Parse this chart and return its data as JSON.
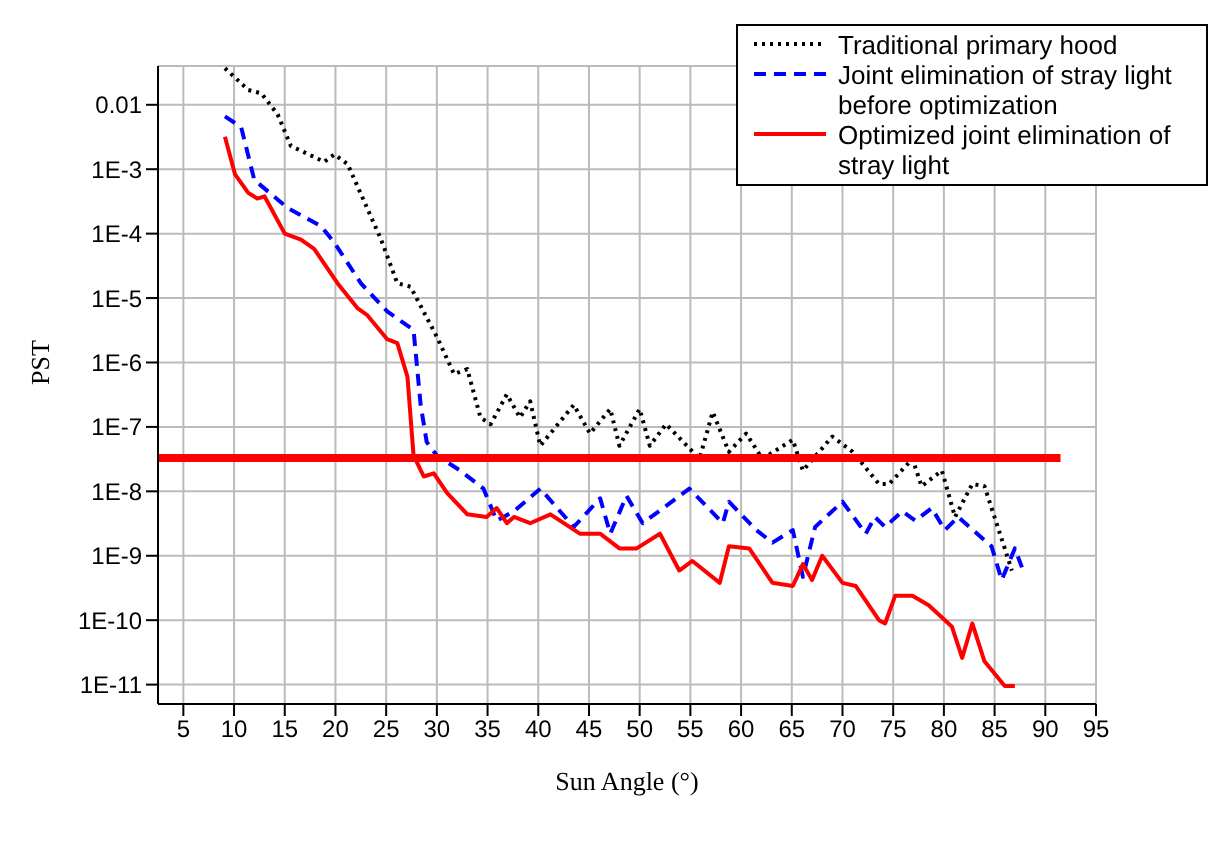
{
  "chart_data": {
    "type": "line",
    "xlabel": "Sun Angle (°)",
    "ylabel": "PST",
    "log": "y",
    "grid": true,
    "legend": "top right",
    "marker": "none",
    "xlim": [
      2.5,
      95
    ],
    "xticks": [
      5,
      10,
      15,
      20,
      25,
      30,
      35,
      40,
      45,
      50,
      55,
      60,
      65,
      70,
      75,
      80,
      85,
      90,
      95
    ],
    "ylim": [
      5e-12,
      0.04
    ],
    "yticks": [
      {
        "value": 0.01,
        "label": "0.01"
      },
      {
        "value": 0.001,
        "label": "1E-3"
      },
      {
        "value": 0.0001,
        "label": "1E-4"
      },
      {
        "value": 1e-05,
        "label": "1E-5"
      },
      {
        "value": 1e-06,
        "label": "1E-6"
      },
      {
        "value": 1e-07,
        "label": "1E-7"
      },
      {
        "value": 1e-08,
        "label": "1E-8"
      },
      {
        "value": 1e-09,
        "label": "1E-9"
      },
      {
        "value": 1e-10,
        "label": "1E-10"
      },
      {
        "value": 1e-11,
        "label": "1E-11"
      }
    ],
    "series": [
      {
        "name": "Traditional primary hood",
        "color": "#000000",
        "line_style": "dotted",
        "x": [
          9.1,
          11.4,
          12.7,
          14.3,
          15.6,
          18.9,
          19.9,
          21.2,
          24.5,
          26.1,
          27.4,
          30.0,
          31.7,
          33.0,
          34.3,
          35.3,
          36.9,
          38.2,
          39.2,
          40.2,
          43.5,
          45.1,
          47.1,
          48.0,
          50.0,
          51.0,
          52.6,
          55.9,
          57.2,
          58.8,
          60.5,
          62.1,
          65.1,
          66.1,
          69.0,
          71.0,
          73.6,
          74.6,
          76.9,
          77.8,
          79.8,
          81.1,
          82.8,
          84.0,
          86.0,
          86.7
        ],
        "values": [
          0.037,
          0.017,
          0.015,
          0.0071,
          0.0023,
          0.0013,
          0.0017,
          0.0012,
          8.1e-05,
          1.7e-05,
          1.5e-05,
          2.5e-06,
          6.6e-07,
          7.9e-07,
          1.4e-07,
          1.1e-07,
          3.2e-07,
          1.4e-07,
          2.5e-07,
          5.1e-08,
          2.2e-07,
          7.9e-08,
          1.9e-07,
          5.1e-08,
          1.9e-07,
          5.1e-08,
          1.1e-07,
          3.2e-08,
          1.7e-07,
          4.1e-08,
          7.9e-08,
          3.2e-08,
          6.3e-08,
          2.1e-08,
          7.1e-08,
          4.1e-08,
          1.3e-08,
          1.3e-08,
          3.2e-08,
          1.2e-08,
          2.1e-08,
          4e-09,
          1.3e-08,
          1.2e-08,
          1.3e-09,
          5.9e-10
        ]
      },
      {
        "name": "Joint elimination of stray light before optimization",
        "color": "#0000ff",
        "line_style": "dashed",
        "x": [
          9.1,
          10.7,
          12.0,
          15.3,
          18.6,
          19.9,
          22.5,
          25.1,
          27.7,
          28.4,
          29.0,
          30.0,
          32.3,
          34.6,
          35.9,
          37.6,
          40.2,
          43.5,
          46.1,
          47.1,
          48.7,
          50.3,
          54.9,
          58.2,
          58.8,
          61.5,
          63.1,
          65.1,
          66.1,
          67.3,
          70.0,
          72.3,
          73.2,
          74.2,
          75.9,
          77.2,
          78.8,
          80.1,
          81.4,
          84.7,
          85.7,
          87.0,
          87.7
        ],
        "values": [
          0.0066,
          0.0045,
          0.00068,
          0.00025,
          0.00013,
          7.2e-05,
          1.7e-05,
          6.2e-06,
          3.2e-06,
          2.2e-07,
          5.8e-08,
          3.6e-08,
          2.1e-08,
          1.1e-08,
          3.5e-09,
          4.9e-09,
          1.1e-08,
          2.8e-09,
          7.8e-09,
          2.2e-09,
          8.5e-09,
          3.2e-09,
          1.1e-08,
          3.2e-09,
          6.9e-09,
          2.5e-09,
          1.6e-09,
          2.5e-09,
          4.7e-10,
          2.8e-09,
          6.9e-09,
          2.2e-09,
          4e-09,
          2.8e-09,
          4.9e-09,
          3.5e-09,
          5.5e-09,
          2.5e-09,
          4e-09,
          1.4e-09,
          4.2e-10,
          1.3e-09,
          6.6e-10
        ]
      },
      {
        "name": "Optimized joint elimination of stray light",
        "color": "#ff0000",
        "line_style": "solid",
        "x": [
          9.1,
          10.1,
          11.4,
          12.3,
          13.0,
          15.0,
          16.6,
          17.9,
          20.2,
          22.2,
          23.1,
          25.1,
          26.1,
          27.1,
          27.7,
          28.7,
          29.7,
          31.0,
          33.0,
          34.9,
          35.9,
          36.9,
          37.6,
          39.2,
          41.2,
          44.1,
          46.1,
          48.0,
          49.7,
          52.0,
          53.9,
          55.2,
          57.9,
          58.8,
          60.8,
          63.1,
          65.1,
          66.1,
          67.0,
          68.0,
          70.0,
          71.3,
          73.6,
          74.2,
          75.2,
          76.9,
          78.5,
          80.8,
          81.8,
          82.8,
          84.0,
          86.0,
          87.0
        ],
        "values": [
          0.0032,
          0.00083,
          0.00043,
          0.00035,
          0.00038,
          0.0001,
          8.1e-05,
          5.8e-05,
          1.7e-05,
          6.9e-06,
          5.5e-06,
          2.3e-06,
          2e-06,
          6e-07,
          3.6e-08,
          1.7e-08,
          1.9e-08,
          9.5e-09,
          4.4e-09,
          4e-09,
          5.5e-09,
          3.2e-09,
          4e-09,
          3.2e-09,
          4.4e-09,
          2.2e-09,
          2.2e-09,
          1.3e-09,
          1.3e-09,
          2.2e-09,
          5.9e-10,
          8.3e-10,
          3.8e-10,
          1.4e-09,
          1.3e-09,
          3.8e-10,
          3.4e-10,
          7.4e-10,
          4.2e-10,
          1e-09,
          3.8e-10,
          3.4e-10,
          1e-10,
          8.9e-11,
          2.4e-10,
          2.4e-10,
          1.7e-10,
          7.9e-11,
          2.6e-11,
          8.9e-11,
          2.3e-11,
          9.5e-12,
          9.5e-12
        ]
      },
      {
        "color": "#ff0000",
        "line_style": "solid",
        "x": [
          2.5,
          91.5
        ],
        "values": [
          3.3e-08,
          3.3e-08
        ]
      }
    ]
  }
}
